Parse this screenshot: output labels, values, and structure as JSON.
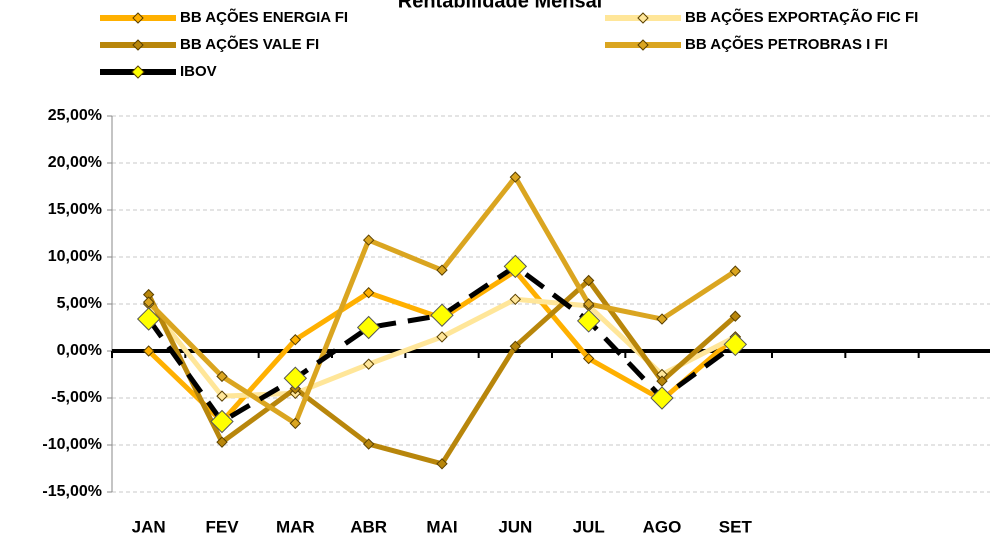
{
  "chart_data": {
    "type": "line",
    "title": "Rentabilidade Mensal",
    "categories": [
      "JAN",
      "FEV",
      "MAR",
      "ABR",
      "MAI",
      "JUN",
      "JUL",
      "AGO",
      "SET",
      null,
      null,
      null
    ],
    "series": [
      {
        "name": "BB AÇÕES ENERGIA FI",
        "color": "#ffb000",
        "values": [
          0,
          -7.5,
          1.2,
          6.2,
          3.5,
          8.5,
          -0.8,
          -5.2,
          1.5,
          null,
          null,
          null
        ]
      },
      {
        "name": "BB AÇÕES EXPORTAÇÃO FIC FI",
        "color": "#ffe699",
        "values": [
          5,
          -4.8,
          -4.5,
          -1.4,
          1.5,
          5.5,
          4.8,
          -2.5,
          1.5,
          null,
          null,
          null
        ]
      },
      {
        "name": "BB AÇÕES VALE FI",
        "color": "#b8860b",
        "values": [
          6,
          -9.7,
          -4,
          -9.9,
          -12,
          0.5,
          7.5,
          -3.2,
          3.7,
          null,
          null,
          null
        ]
      },
      {
        "name": "BB AÇÕES PETROBRAS I FI",
        "color": "#daa520",
        "values": [
          5.2,
          -2.7,
          -7.7,
          11.8,
          8.6,
          18.5,
          5,
          3.4,
          8.5,
          null,
          null,
          null
        ]
      },
      {
        "name": "IBOV",
        "color": "#000000",
        "marker_color": "#ffff00",
        "dashed": true,
        "values": [
          3.4,
          -7.5,
          -2.9,
          2.5,
          3.8,
          9,
          3.2,
          -5,
          0.7,
          null,
          null,
          null
        ]
      }
    ],
    "ylim": [
      -15,
      25
    ],
    "yticks": [
      {
        "value": -15,
        "label": "-15,00%"
      },
      {
        "value": -10,
        "label": "-10,00%"
      },
      {
        "value": -5,
        "label": "-5,00%"
      },
      {
        "value": 0,
        "label": "0,00%"
      },
      {
        "value": 5,
        "label": "5,00%"
      },
      {
        "value": 10,
        "label": "10,00%"
      },
      {
        "value": 15,
        "label": "15,00%"
      },
      {
        "value": 20,
        "label": "20,00%"
      },
      {
        "value": 25,
        "label": "25,00%"
      }
    ],
    "grid": true,
    "legend": "top"
  }
}
